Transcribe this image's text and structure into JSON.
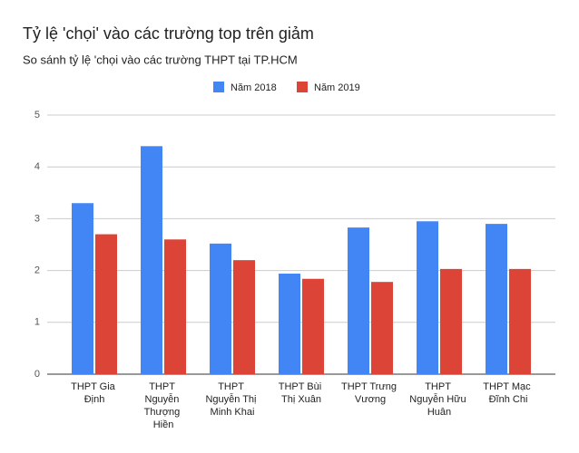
{
  "chart_data": {
    "type": "bar",
    "title": "Tỷ lệ 'chọi' vào các trường top trên giảm",
    "subtitle": "So sánh tỷ lệ 'chọi vào các trường THPT tại TP.HCM",
    "categories": [
      "THPT Gia Định",
      "THPT Nguyễn Thượng Hiền",
      "THPT Nguyễn Thị Minh Khai",
      "THPT Bùi Thị Xuân",
      "THPT Trưng Vương",
      "THPT Nguyễn Hữu Huân",
      "THPT Mạc Đĩnh Chi"
    ],
    "series": [
      {
        "name": "Năm 2018",
        "color": "#4285f4",
        "values": [
          3.3,
          4.4,
          2.52,
          1.94,
          2.83,
          2.95,
          2.9
        ]
      },
      {
        "name": "Năm 2019",
        "color": "#db4437",
        "values": [
          2.7,
          2.6,
          2.2,
          1.84,
          1.78,
          2.03,
          2.03
        ]
      }
    ],
    "ylim": [
      0,
      5
    ],
    "yticks": [
      0,
      1,
      2,
      3,
      4,
      5
    ],
    "grid": true,
    "legend": "top"
  }
}
